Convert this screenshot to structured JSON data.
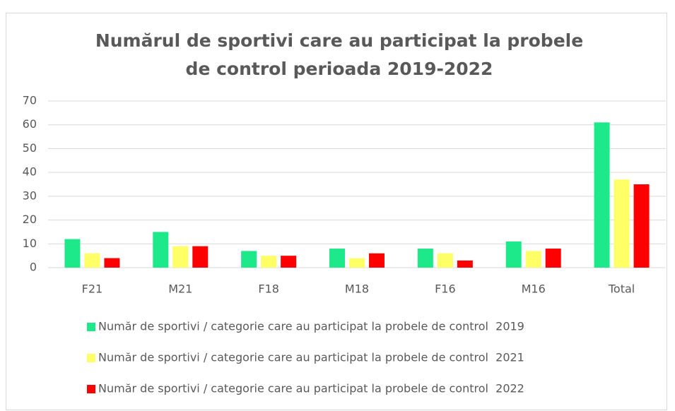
{
  "chart_data": {
    "type": "bar",
    "title": "Numărul de sportivi care au participat la probele de control perioada 2019-2022",
    "categories": [
      "F21",
      "M21",
      "F18",
      "M18",
      "F16",
      "M16",
      "Total"
    ],
    "series": [
      {
        "name": "Număr de sportivi / categorie care au participat la probele de control  2019",
        "color": "#1ee98a",
        "values": [
          12,
          15,
          7,
          8,
          8,
          11,
          61
        ]
      },
      {
        "name": "Număr de sportivi / categorie care au participat la probele de control  2021",
        "color": "#ffff66",
        "values": [
          6,
          9,
          5,
          4,
          6,
          7,
          37
        ]
      },
      {
        "name": "Număr de sportivi / categorie care au participat la probele de control  2022",
        "color": "#ff0000",
        "values": [
          4,
          9,
          5,
          6,
          3,
          8,
          35
        ]
      }
    ],
    "ylim": [
      0,
      70
    ],
    "yticks": [
      0,
      10,
      20,
      30,
      40,
      50,
      60,
      70
    ],
    "grid": true,
    "legend": "bottom"
  }
}
